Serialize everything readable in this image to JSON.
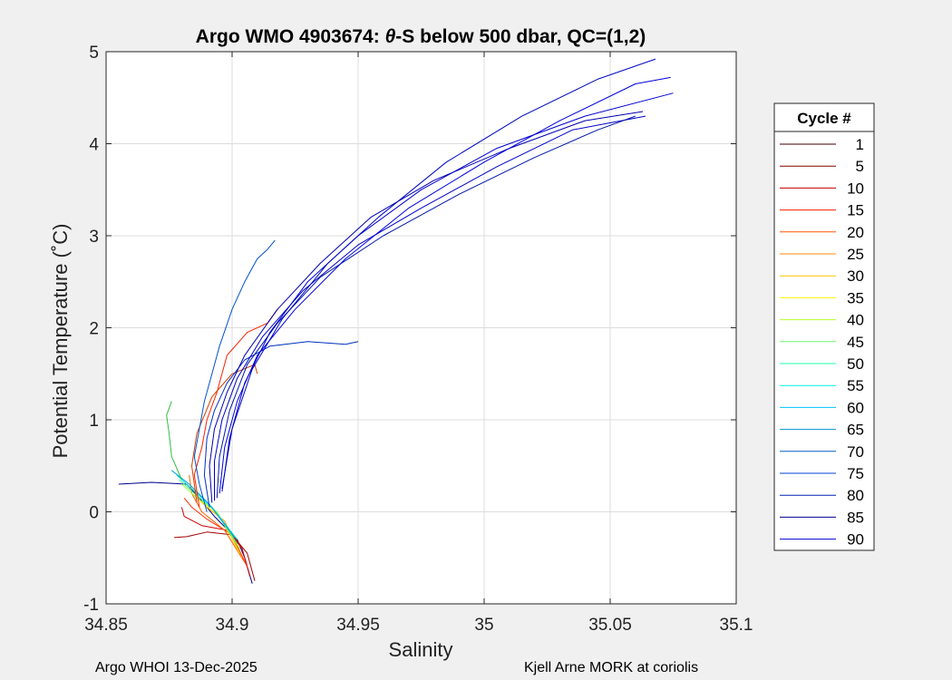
{
  "chart_data": {
    "type": "line",
    "title_prefix": "Argo WMO 4903674: ",
    "title_symbol": "θ",
    "title_suffix": "-S below 500 dbar,  QC=(1,2)",
    "xlabel": "Salinity",
    "ylabel": "Potential Temperature (˚C)",
    "xlim": [
      34.85,
      35.1
    ],
    "ylim": [
      -1,
      5
    ],
    "xticks": [
      34.85,
      34.9,
      34.95,
      35,
      35.05,
      35.1
    ],
    "xtick_labels": [
      "34.85",
      "34.9",
      "34.95",
      "35",
      "35.05",
      "35.1"
    ],
    "yticks": [
      -1,
      0,
      1,
      2,
      3,
      4,
      5
    ],
    "ytick_labels": [
      "-1",
      "0",
      "1",
      "2",
      "3",
      "4",
      "5"
    ],
    "grid": true,
    "legend": {
      "title": "Cycle #",
      "placement": "right-outside",
      "entries": [
        {
          "label": "1",
          "color": "#3c0000"
        },
        {
          "label": "5",
          "color": "#800000"
        },
        {
          "label": "10",
          "color": "#c00000"
        },
        {
          "label": "15",
          "color": "#ff1a00"
        },
        {
          "label": "20",
          "color": "#ff5500"
        },
        {
          "label": "25",
          "color": "#ff8c00"
        },
        {
          "label": "30",
          "color": "#ffc000"
        },
        {
          "label": "35",
          "color": "#f5f500"
        },
        {
          "label": "40",
          "color": "#b5ff2a"
        },
        {
          "label": "45",
          "color": "#6aff6a"
        },
        {
          "label": "50",
          "color": "#22ffaa"
        },
        {
          "label": "55",
          "color": "#00f0e0"
        },
        {
          "label": "60",
          "color": "#00c0ff"
        },
        {
          "label": "65",
          "color": "#0095c8"
        },
        {
          "label": "70",
          "color": "#0060c0"
        },
        {
          "label": "75",
          "color": "#0045e0"
        },
        {
          "label": "80",
          "color": "#0020b0"
        },
        {
          "label": "85",
          "color": "#000090"
        },
        {
          "label": "90",
          "color": "#0000d0"
        }
      ]
    },
    "series": [
      {
        "color": "#00008c",
        "points": [
          [
            34.908,
            -0.78
          ],
          [
            34.905,
            -0.5
          ],
          [
            34.902,
            -0.3
          ],
          [
            34.893,
            -0.05
          ],
          [
            34.887,
            0.15
          ],
          [
            34.882,
            0.3
          ],
          [
            34.868,
            0.32
          ],
          [
            34.855,
            0.3
          ]
        ]
      },
      {
        "color": "#a00000",
        "points": [
          [
            34.909,
            -0.75
          ],
          [
            34.906,
            -0.45
          ],
          [
            34.9,
            -0.25
          ],
          [
            34.89,
            -0.22
          ],
          [
            34.882,
            -0.27
          ],
          [
            34.877,
            -0.28
          ]
        ]
      },
      {
        "color": "#d00000",
        "points": [
          [
            34.907,
            -0.7
          ],
          [
            34.904,
            -0.4
          ],
          [
            34.898,
            -0.2
          ],
          [
            34.888,
            -0.15
          ],
          [
            34.881,
            -0.05
          ],
          [
            34.88,
            0.05
          ]
        ]
      },
      {
        "color": "#ff3000",
        "points": [
          [
            34.906,
            -0.6
          ],
          [
            34.9,
            -0.25
          ],
          [
            34.89,
            -0.08
          ],
          [
            34.884,
            0.05
          ],
          [
            34.881,
            0.15
          ]
        ]
      },
      {
        "color": "#ff6000",
        "points": [
          [
            34.905,
            -0.55
          ],
          [
            34.897,
            -0.2
          ],
          [
            34.888,
            0.0
          ],
          [
            34.884,
            0.2
          ],
          [
            34.883,
            0.4
          ]
        ]
      },
      {
        "color": "#ffa000",
        "points": [
          [
            34.904,
            -0.5
          ],
          [
            34.897,
            -0.1
          ],
          [
            34.89,
            0.05
          ],
          [
            34.885,
            0.18
          ]
        ]
      },
      {
        "color": "#f0e000",
        "points": [
          [
            34.903,
            -0.45
          ],
          [
            34.895,
            -0.05
          ],
          [
            34.889,
            0.08
          ],
          [
            34.884,
            0.2
          ]
        ]
      },
      {
        "color": "#a0ff40",
        "points": [
          [
            34.903,
            -0.4
          ],
          [
            34.894,
            0.0
          ],
          [
            34.886,
            0.15
          ],
          [
            34.88,
            0.3
          ]
        ]
      },
      {
        "color": "#40ff90",
        "points": [
          [
            34.902,
            -0.35
          ],
          [
            34.893,
            0.02
          ],
          [
            34.885,
            0.2
          ],
          [
            34.879,
            0.35
          ]
        ]
      },
      {
        "color": "#00e0d0",
        "points": [
          [
            34.902,
            -0.3
          ],
          [
            34.892,
            0.05
          ],
          [
            34.884,
            0.25
          ],
          [
            34.878,
            0.4
          ]
        ]
      },
      {
        "color": "#00a0e0",
        "points": [
          [
            34.901,
            -0.28
          ],
          [
            34.891,
            0.08
          ],
          [
            34.883,
            0.3
          ],
          [
            34.876,
            0.45
          ]
        ]
      },
      {
        "color": "#30c040",
        "points": [
          [
            34.88,
            0.35
          ],
          [
            34.876,
            0.6
          ],
          [
            34.875,
            0.85
          ],
          [
            34.874,
            1.05
          ],
          [
            34.876,
            1.2
          ]
        ]
      },
      {
        "color": "#ff2000",
        "points": [
          [
            34.887,
            0.05
          ],
          [
            34.885,
            0.4
          ],
          [
            34.888,
            0.7
          ],
          [
            34.89,
            1.0
          ],
          [
            34.894,
            1.3
          ],
          [
            34.898,
            1.7
          ],
          [
            34.906,
            1.95
          ],
          [
            34.914,
            2.05
          ],
          [
            34.918,
            2.2
          ]
        ]
      },
      {
        "color": "#d04000",
        "points": [
          [
            34.886,
            0.1
          ],
          [
            34.884,
            0.5
          ],
          [
            34.886,
            0.85
          ],
          [
            34.892,
            1.25
          ],
          [
            34.9,
            1.5
          ],
          [
            34.909,
            1.6
          ],
          [
            34.91,
            1.5
          ]
        ]
      },
      {
        "color": "#0050d0",
        "points": [
          [
            34.89,
            0.0
          ],
          [
            34.887,
            0.3
          ],
          [
            34.885,
            0.6
          ],
          [
            34.887,
            0.9
          ],
          [
            34.889,
            1.2
          ],
          [
            34.892,
            1.5
          ],
          [
            34.895,
            1.8
          ],
          [
            34.9,
            2.2
          ],
          [
            34.905,
            2.5
          ],
          [
            34.91,
            2.75
          ],
          [
            34.914,
            2.85
          ],
          [
            34.917,
            2.95
          ]
        ]
      },
      {
        "color": "#0030c0",
        "points": [
          [
            34.891,
            0.05
          ],
          [
            34.889,
            0.4
          ],
          [
            34.89,
            0.8
          ],
          [
            34.893,
            1.1
          ],
          [
            34.898,
            1.4
          ],
          [
            34.905,
            1.65
          ],
          [
            34.915,
            1.8
          ],
          [
            34.93,
            1.85
          ],
          [
            34.945,
            1.82
          ],
          [
            34.95,
            1.85
          ]
        ]
      },
      {
        "color": "#0000b0",
        "points": [
          [
            34.892,
            0.1
          ],
          [
            34.891,
            0.5
          ],
          [
            34.893,
            0.9
          ],
          [
            34.898,
            1.3
          ],
          [
            34.905,
            1.7
          ],
          [
            34.918,
            2.2
          ],
          [
            34.935,
            2.7
          ],
          [
            34.955,
            3.2
          ],
          [
            34.98,
            3.6
          ],
          [
            35.01,
            3.95
          ],
          [
            35.04,
            4.25
          ],
          [
            35.063,
            4.35
          ]
        ]
      },
      {
        "color": "#0000c8",
        "points": [
          [
            34.893,
            0.12
          ],
          [
            34.893,
            0.55
          ],
          [
            34.896,
            1.0
          ],
          [
            34.902,
            1.45
          ],
          [
            34.912,
            1.9
          ],
          [
            34.928,
            2.4
          ],
          [
            34.95,
            2.9
          ],
          [
            34.975,
            3.3
          ],
          [
            35.005,
            3.75
          ],
          [
            35.035,
            4.15
          ],
          [
            35.064,
            4.3
          ]
        ]
      },
      {
        "color": "#0018a8",
        "points": [
          [
            34.894,
            0.15
          ],
          [
            34.895,
            0.6
          ],
          [
            34.899,
            1.1
          ],
          [
            34.906,
            1.6
          ],
          [
            34.918,
            2.05
          ],
          [
            34.935,
            2.55
          ],
          [
            34.96,
            3.0
          ],
          [
            34.99,
            3.45
          ],
          [
            35.02,
            3.85
          ],
          [
            35.045,
            4.15
          ],
          [
            35.06,
            4.3
          ]
        ]
      },
      {
        "color": "#0000e0",
        "points": [
          [
            34.895,
            0.2
          ],
          [
            34.897,
            0.7
          ],
          [
            34.902,
            1.2
          ],
          [
            34.91,
            1.7
          ],
          [
            34.925,
            2.2
          ],
          [
            34.945,
            2.75
          ],
          [
            34.97,
            3.3
          ],
          [
            35.0,
            3.8
          ],
          [
            35.03,
            4.25
          ],
          [
            35.06,
            4.65
          ],
          [
            35.074,
            4.72
          ]
        ]
      },
      {
        "color": "#0000d0",
        "points": [
          [
            34.896,
            0.22
          ],
          [
            34.899,
            0.8
          ],
          [
            34.905,
            1.4
          ],
          [
            34.915,
            1.95
          ],
          [
            34.93,
            2.5
          ],
          [
            34.95,
            3.0
          ],
          [
            34.975,
            3.5
          ],
          [
            35.005,
            3.95
          ],
          [
            35.04,
            4.3
          ],
          [
            35.075,
            4.55
          ]
        ]
      },
      {
        "color": "#0008c0",
        "points": [
          [
            34.896,
            0.25
          ],
          [
            34.9,
            0.9
          ],
          [
            34.908,
            1.55
          ],
          [
            34.92,
            2.1
          ],
          [
            34.938,
            2.7
          ],
          [
            34.958,
            3.2
          ],
          [
            34.985,
            3.8
          ],
          [
            35.015,
            4.3
          ],
          [
            35.045,
            4.7
          ],
          [
            35.068,
            4.92
          ]
        ]
      }
    ]
  },
  "footer": {
    "left": "Argo WHOI 13-Dec-2025",
    "right": "Kjell Arne MORK at coriolis"
  }
}
